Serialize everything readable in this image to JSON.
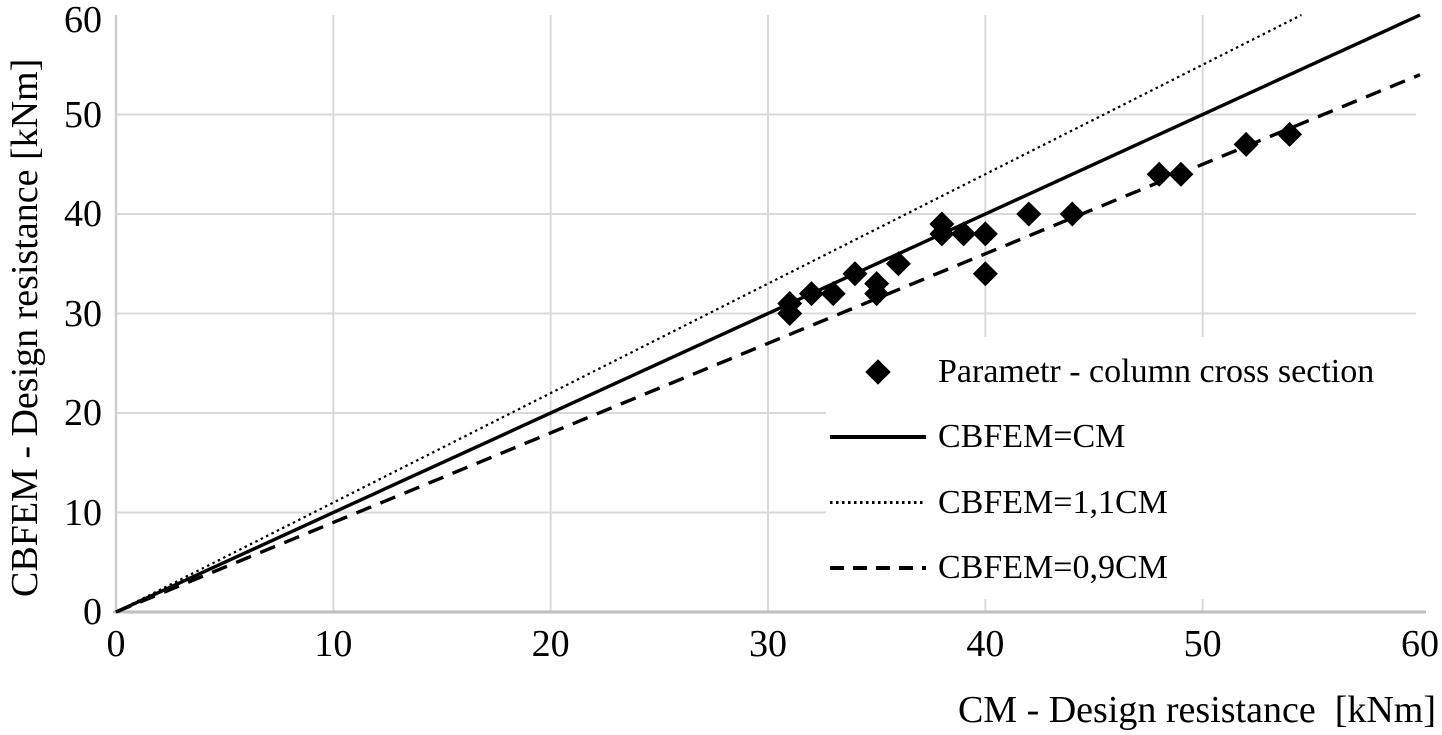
{
  "chart_data": {
    "type": "scatter",
    "x_axis_title": "CM - Design resistance  [kNm]",
    "y_axis_title": "CBFEM - Design resistance [kNm]",
    "xlim": [
      0,
      60
    ],
    "ylim": [
      0,
      60
    ],
    "x_ticks": [
      0,
      10,
      20,
      30,
      40,
      50,
      60
    ],
    "y_ticks": [
      0,
      10,
      20,
      30,
      40,
      50,
      60
    ],
    "grid": true,
    "series": [
      {
        "name": "Parametr - column cross section",
        "type": "scatter",
        "marker": "diamond",
        "color": "#000000",
        "points": [
          [
            31,
            30
          ],
          [
            31,
            31
          ],
          [
            32,
            32
          ],
          [
            33,
            32
          ],
          [
            34,
            34
          ],
          [
            35,
            32
          ],
          [
            35,
            33
          ],
          [
            36,
            35
          ],
          [
            38,
            38
          ],
          [
            38,
            39
          ],
          [
            39,
            38
          ],
          [
            40,
            38
          ],
          [
            40,
            34
          ],
          [
            42,
            40
          ],
          [
            44,
            40
          ],
          [
            48,
            44
          ],
          [
            49,
            44
          ],
          [
            52,
            47
          ],
          [
            54,
            48
          ]
        ]
      },
      {
        "name": "CBFEM=CM",
        "type": "line",
        "style": "solid",
        "slope": 1.0,
        "color": "#000000"
      },
      {
        "name": "CBFEM=1,1CM",
        "type": "line",
        "style": "dotted",
        "slope": 1.1,
        "color": "#000000"
      },
      {
        "name": "CBFEM=0,9CM",
        "type": "line",
        "style": "dashed",
        "slope": 0.9,
        "color": "#000000"
      }
    ],
    "legend": {
      "position": "inside-right",
      "items": [
        {
          "label": "Parametr - column cross section",
          "marker": "diamond"
        },
        {
          "label": "CBFEM=CM",
          "marker": "solid-line"
        },
        {
          "label": "CBFEM=1,1CM",
          "marker": "dotted-line"
        },
        {
          "label": "CBFEM=0,9CM",
          "marker": "dashed-line"
        }
      ]
    },
    "colors": {
      "ink": "#000000",
      "grid": "#d9d9d9",
      "axis": "#bfbfbf",
      "axis_left": "#cfcfcf",
      "background": "#ffffff"
    }
  }
}
